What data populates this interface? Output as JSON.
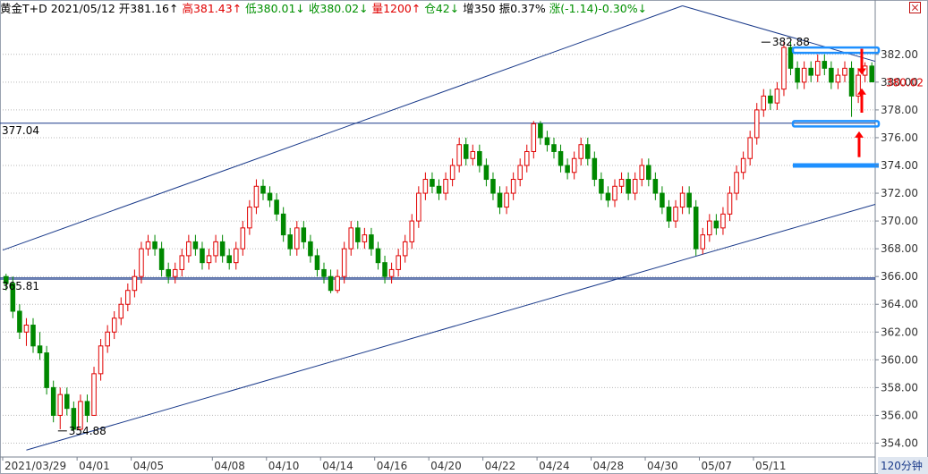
{
  "header": {
    "symbol": "黄金T+D",
    "date": "2021/05/12",
    "open_label": "开381.16↑",
    "high_label": "高381.43↑",
    "low_label": "低380.01↓",
    "close_label": "收380.02↓",
    "volume_label": "量1200↑",
    "position_label": "仓42↓",
    "increase_label": "增350",
    "amplitude_label": "振0.37%",
    "change_label": "涨(-1.14)-0.30%↓"
  },
  "period_label": "120分钟",
  "colors": {
    "up": "#e00000",
    "down": "#008800",
    "trend": "#1a3a8a",
    "level": "#1e90ff",
    "arrow": "#ff0000"
  },
  "chart_data": {
    "type": "candlestick",
    "ylim": [
      353,
      384.5
    ],
    "y_ticks": [
      "354.00",
      "356.00",
      "358.00",
      "360.00",
      "362.00",
      "364.00",
      "366.00",
      "368.00",
      "370.00",
      "372.00",
      "374.00",
      "376.00",
      "378.00",
      "380.00",
      "382.00"
    ],
    "x_ticks": [
      "2021/03/29",
      "04/01",
      "04/05",
      "04/08",
      "04/10",
      "04/14",
      "04/16",
      "04/20",
      "04/22",
      "04/24",
      "04/28",
      "04/30",
      "05/07",
      "05/11"
    ],
    "last_price": "380.02",
    "candles": [
      [
        366,
        365.5,
        366.2,
        365
      ],
      [
        365.5,
        363.5,
        366,
        363
      ],
      [
        363.5,
        362,
        364,
        361.5
      ],
      [
        362,
        362.5,
        363,
        361
      ],
      [
        362.5,
        361,
        363,
        360.5
      ],
      [
        361,
        360.5,
        362,
        360
      ],
      [
        360.5,
        358,
        361,
        357.5
      ],
      [
        358,
        356,
        358.5,
        355.5
      ],
      [
        356,
        357.5,
        358,
        355
      ],
      [
        357.5,
        356.5,
        358,
        356
      ],
      [
        356.5,
        355,
        357,
        354.9
      ],
      [
        355,
        357,
        357.5,
        354.9
      ],
      [
        357,
        356,
        357.5,
        355.5
      ],
      [
        356,
        359,
        359.5,
        356
      ],
      [
        359,
        361,
        361.5,
        358.5
      ],
      [
        361,
        362,
        362.5,
        360.5
      ],
      [
        362,
        363,
        363.5,
        361.5
      ],
      [
        363,
        364,
        364.5,
        362.5
      ],
      [
        364,
        365,
        365.5,
        363.5
      ],
      [
        365,
        366,
        366.5,
        364.5
      ],
      [
        366,
        368,
        368.5,
        365.5
      ],
      [
        368,
        368.5,
        369,
        367.5
      ],
      [
        368.5,
        368,
        369,
        367.5
      ],
      [
        368,
        366.5,
        368.5,
        366
      ],
      [
        366.5,
        366,
        367,
        365.5
      ],
      [
        366,
        366.5,
        367,
        365.5
      ],
      [
        366.5,
        367.5,
        368,
        366
      ],
      [
        367.5,
        368.5,
        369,
        367
      ],
      [
        368.5,
        368,
        369,
        367.5
      ],
      [
        368,
        367,
        368.5,
        366.5
      ],
      [
        367,
        367.5,
        368,
        366.5
      ],
      [
        367.5,
        368.5,
        369,
        367
      ],
      [
        368.5,
        367.5,
        369,
        367
      ],
      [
        367.5,
        367,
        368,
        366.5
      ],
      [
        367,
        368,
        368.5,
        366.5
      ],
      [
        368,
        369.5,
        370,
        367.5
      ],
      [
        369.5,
        371,
        371.5,
        369
      ],
      [
        371,
        372.5,
        373,
        370.5
      ],
      [
        372.5,
        372,
        373,
        371.5
      ],
      [
        372,
        371.5,
        372.5,
        371
      ],
      [
        371.5,
        370.5,
        372,
        370
      ],
      [
        370.5,
        369,
        371,
        368.5
      ],
      [
        369,
        368,
        369.5,
        367.5
      ],
      [
        368,
        369.5,
        370,
        367.5
      ],
      [
        369.5,
        368.5,
        370,
        368
      ],
      [
        368.5,
        367.5,
        369,
        367
      ],
      [
        367.5,
        366.5,
        368,
        366
      ],
      [
        366.5,
        366,
        367,
        365.5
      ],
      [
        366,
        365,
        366.5,
        364.8
      ],
      [
        365,
        366,
        366.5,
        364.8
      ],
      [
        366,
        368,
        368.5,
        365.5
      ],
      [
        368,
        369.5,
        370,
        367.5
      ],
      [
        369.5,
        368.5,
        370,
        368
      ],
      [
        368.5,
        369,
        369.5,
        368
      ],
      [
        369,
        368,
        369.5,
        367.5
      ],
      [
        368,
        367,
        368.5,
        366.5
      ],
      [
        367,
        366,
        367.5,
        365.5
      ],
      [
        366,
        366.5,
        367,
        365.5
      ],
      [
        366.5,
        367.5,
        368,
        366
      ],
      [
        367.5,
        368.5,
        369,
        367
      ],
      [
        368.5,
        370,
        370.5,
        368
      ],
      [
        370,
        372,
        372.5,
        369.5
      ],
      [
        372,
        373,
        373.5,
        371.5
      ],
      [
        373,
        372.5,
        373.5,
        372
      ],
      [
        372.5,
        372,
        373,
        371.5
      ],
      [
        372,
        373,
        373.5,
        371.5
      ],
      [
        373,
        374,
        374.5,
        372.5
      ],
      [
        374,
        375.5,
        376,
        373.5
      ],
      [
        375.5,
        374.5,
        376,
        374
      ],
      [
        374.5,
        375,
        375.5,
        374
      ],
      [
        375,
        374,
        375.5,
        373.5
      ],
      [
        374,
        373,
        374.5,
        372.5
      ],
      [
        373,
        372,
        373.5,
        371.5
      ],
      [
        372,
        371,
        372.5,
        370.5
      ],
      [
        371,
        372,
        372.5,
        370.5
      ],
      [
        372,
        373,
        373.5,
        371.5
      ],
      [
        373,
        374,
        374.5,
        372.5
      ],
      [
        374,
        375,
        375.5,
        373.5
      ],
      [
        375,
        377,
        377.2,
        374.5
      ],
      [
        377,
        376,
        377.2,
        375.5
      ],
      [
        376,
        375.5,
        376.5,
        375
      ],
      [
        375.5,
        375,
        376,
        374.5
      ],
      [
        375,
        374,
        375.5,
        373.5
      ],
      [
        374,
        373.5,
        374.5,
        373
      ],
      [
        373.5,
        374.5,
        375,
        373
      ],
      [
        374.5,
        375.5,
        376,
        374
      ],
      [
        375.5,
        374.5,
        376,
        374
      ],
      [
        374.5,
        373,
        375,
        372.5
      ],
      [
        373,
        372,
        373.5,
        371.5
      ],
      [
        372,
        371.5,
        372.5,
        371
      ],
      [
        371.5,
        372.5,
        373,
        371
      ],
      [
        372.5,
        373,
        373.5,
        372
      ],
      [
        373,
        372,
        373.5,
        371.5
      ],
      [
        372,
        373,
        373.5,
        371.5
      ],
      [
        373,
        374,
        374.5,
        372.5
      ],
      [
        374,
        373,
        374.5,
        372.5
      ],
      [
        373,
        372,
        373.5,
        371.5
      ],
      [
        372,
        371,
        372.5,
        370.5
      ],
      [
        371,
        370,
        371.5,
        369.5
      ],
      [
        370,
        371,
        371.5,
        369.5
      ],
      [
        371,
        372,
        372.5,
        370.5
      ],
      [
        372,
        371,
        372.5,
        370.5
      ],
      [
        371,
        368,
        371.5,
        367.5
      ],
      [
        368,
        369,
        369.5,
        367.6
      ],
      [
        369,
        370,
        370.5,
        368.5
      ],
      [
        370,
        369.5,
        370.5,
        369
      ],
      [
        369.5,
        370.5,
        371,
        369
      ],
      [
        370.5,
        372,
        372.5,
        370
      ],
      [
        372,
        373.5,
        374,
        371.5
      ],
      [
        373.5,
        374.5,
        375,
        373
      ],
      [
        374.5,
        376,
        376.5,
        374
      ],
      [
        376,
        378,
        378.5,
        375.5
      ],
      [
        378,
        379,
        379.5,
        377.5
      ],
      [
        379,
        378.5,
        379.5,
        378
      ],
      [
        378.5,
        379.5,
        380,
        378
      ],
      [
        379.5,
        382.5,
        382.9,
        379
      ],
      [
        382.5,
        381,
        382.9,
        380.5
      ],
      [
        381,
        380,
        381.5,
        379.5
      ],
      [
        380,
        381,
        381.5,
        379.5
      ],
      [
        381,
        380.5,
        381.5,
        380
      ],
      [
        380.5,
        381.5,
        382,
        380
      ],
      [
        381.5,
        381,
        382,
        380.5
      ],
      [
        381,
        380,
        381.5,
        379.5
      ],
      [
        380,
        380.5,
        381,
        379.5
      ],
      [
        380.5,
        381,
        381.5,
        380
      ],
      [
        381,
        379,
        381.5,
        377.5
      ],
      [
        379,
        380.5,
        381,
        378.5
      ],
      [
        380.5,
        381.16,
        381.43,
        380
      ],
      [
        381.16,
        380.02,
        381.43,
        380.01
      ]
    ],
    "trendlines": [
      {
        "from": [
          -0.5,
          367.9
        ],
        "to": [
          100,
          385.5
        ]
      },
      {
        "from": [
          100,
          385.5
        ],
        "to": [
          132,
          381.5
        ]
      },
      {
        "from": [
          3,
          353.5
        ],
        "to": [
          132,
          371.2
        ]
      }
    ],
    "horizontal_levels": [
      {
        "value": 377.04,
        "label": "377.04"
      },
      {
        "value": 365.81,
        "label": "365.81"
      },
      {
        "value": 365.9,
        "label": ""
      }
    ],
    "support_levels": [
      382.3,
      377.0,
      374.0
    ],
    "annotations": [
      {
        "text": "382.88",
        "at": [
          113,
          382.88
        ]
      },
      {
        "text": "354.88",
        "at": [
          9,
          354.88
        ]
      }
    ]
  }
}
